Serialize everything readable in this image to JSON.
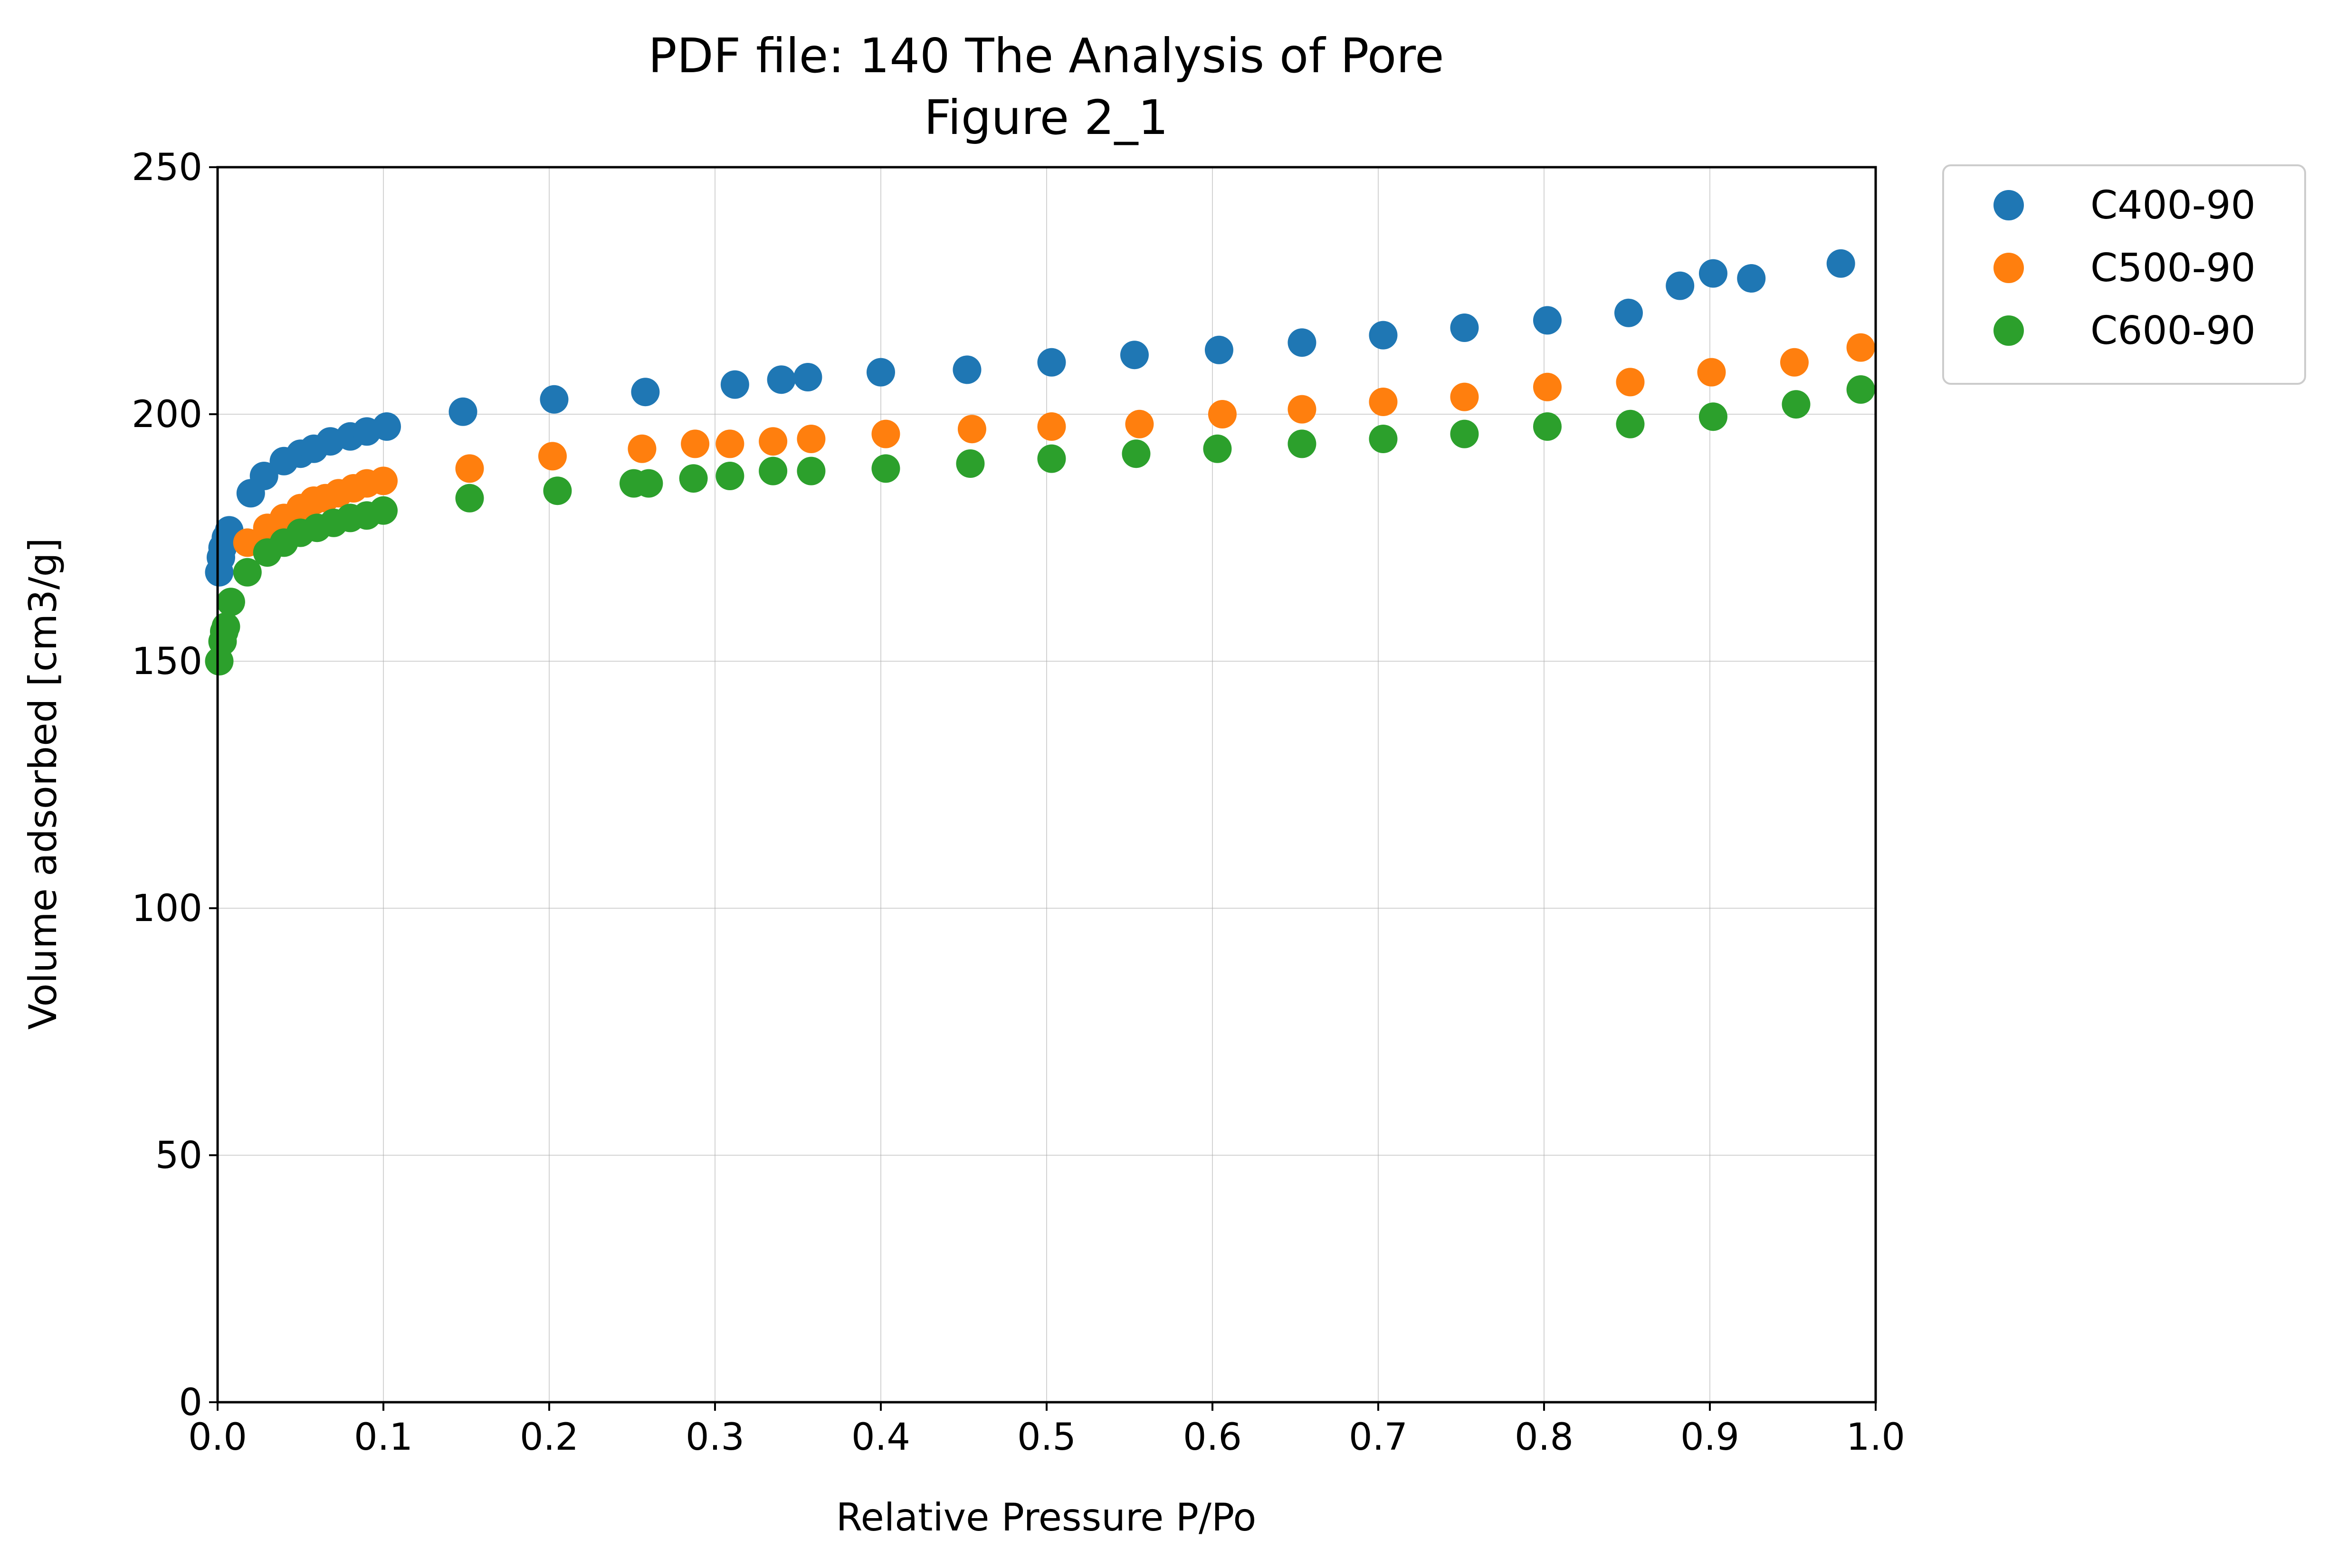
{
  "chart_data": {
    "type": "scatter",
    "title": "PDF file: 140 The Analysis of Pore",
    "subtitle": "Figure 2_1",
    "xlabel": "Relative Pressure P/Po",
    "ylabel": "Volume adsorbed [cm3/g]",
    "xlim": [
      0.0,
      1.0
    ],
    "ylim": [
      0,
      250
    ],
    "x_ticks": [
      "0.0",
      "0.1",
      "0.2",
      "0.3",
      "0.4",
      "0.5",
      "0.6",
      "0.7",
      "0.8",
      "0.9",
      "1.0"
    ],
    "y_ticks": [
      "0",
      "50",
      "100",
      "150",
      "200",
      "250"
    ],
    "grid": true,
    "legend_position": "outside-top-right",
    "series": [
      {
        "name": "C400-90",
        "color": "#1f77b4",
        "points": [
          [
            0.001,
            168
          ],
          [
            0.002,
            171
          ],
          [
            0.003,
            173
          ],
          [
            0.005,
            175
          ],
          [
            0.007,
            176.5
          ],
          [
            0.02,
            184
          ],
          [
            0.028,
            187.5
          ],
          [
            0.04,
            190.5
          ],
          [
            0.05,
            192
          ],
          [
            0.058,
            193
          ],
          [
            0.068,
            194.5
          ],
          [
            0.08,
            195.5
          ],
          [
            0.09,
            196.5
          ],
          [
            0.102,
            197.5
          ],
          [
            0.148,
            200.5
          ],
          [
            0.203,
            203
          ],
          [
            0.258,
            204.5
          ],
          [
            0.312,
            206
          ],
          [
            0.34,
            207
          ],
          [
            0.356,
            207.5
          ],
          [
            0.4,
            208.5
          ],
          [
            0.452,
            209
          ],
          [
            0.503,
            210.5
          ],
          [
            0.553,
            212
          ],
          [
            0.604,
            213
          ],
          [
            0.654,
            214.5
          ],
          [
            0.703,
            216
          ],
          [
            0.752,
            217.5
          ],
          [
            0.802,
            219
          ],
          [
            0.851,
            220.5
          ],
          [
            0.882,
            226
          ],
          [
            0.902,
            228.5
          ],
          [
            0.925,
            227.5
          ],
          [
            0.979,
            230.5
          ]
        ]
      },
      {
        "name": "C500-90",
        "color": "#ff7f0e",
        "points": [
          [
            0.018,
            174
          ],
          [
            0.03,
            177
          ],
          [
            0.04,
            179
          ],
          [
            0.05,
            181
          ],
          [
            0.058,
            182.5
          ],
          [
            0.065,
            183
          ],
          [
            0.073,
            184
          ],
          [
            0.082,
            185
          ],
          [
            0.09,
            186
          ],
          [
            0.1,
            186.5
          ],
          [
            0.152,
            189
          ],
          [
            0.202,
            191.5
          ],
          [
            0.256,
            193
          ],
          [
            0.288,
            194
          ],
          [
            0.309,
            194
          ],
          [
            0.335,
            194.5
          ],
          [
            0.358,
            195
          ],
          [
            0.403,
            196
          ],
          [
            0.455,
            197
          ],
          [
            0.503,
            197.5
          ],
          [
            0.556,
            198
          ],
          [
            0.606,
            200
          ],
          [
            0.654,
            201
          ],
          [
            0.703,
            202.5
          ],
          [
            0.752,
            203.5
          ],
          [
            0.802,
            205.5
          ],
          [
            0.852,
            206.5
          ],
          [
            0.901,
            208.5
          ],
          [
            0.951,
            210.5
          ],
          [
            0.991,
            213.5
          ]
        ]
      },
      {
        "name": "C600-90",
        "color": "#2ca02c",
        "points": [
          [
            0.001,
            150
          ],
          [
            0.003,
            154
          ],
          [
            0.004,
            156
          ],
          [
            0.005,
            157
          ],
          [
            0.008,
            162
          ],
          [
            0.018,
            168
          ],
          [
            0.03,
            172
          ],
          [
            0.04,
            174
          ],
          [
            0.05,
            176
          ],
          [
            0.06,
            177
          ],
          [
            0.07,
            178
          ],
          [
            0.08,
            179
          ],
          [
            0.09,
            179.5
          ],
          [
            0.1,
            180.5
          ],
          [
            0.152,
            183
          ],
          [
            0.205,
            184.5
          ],
          [
            0.251,
            186
          ],
          [
            0.26,
            186
          ],
          [
            0.287,
            187
          ],
          [
            0.309,
            187.5
          ],
          [
            0.335,
            188.5
          ],
          [
            0.358,
            188.5
          ],
          [
            0.403,
            189
          ],
          [
            0.454,
            190
          ],
          [
            0.503,
            191
          ],
          [
            0.554,
            192
          ],
          [
            0.603,
            193
          ],
          [
            0.654,
            194
          ],
          [
            0.703,
            195
          ],
          [
            0.752,
            196
          ],
          [
            0.802,
            197.5
          ],
          [
            0.852,
            198
          ],
          [
            0.902,
            199.5
          ],
          [
            0.952,
            202
          ],
          [
            0.991,
            205
          ]
        ]
      }
    ]
  }
}
